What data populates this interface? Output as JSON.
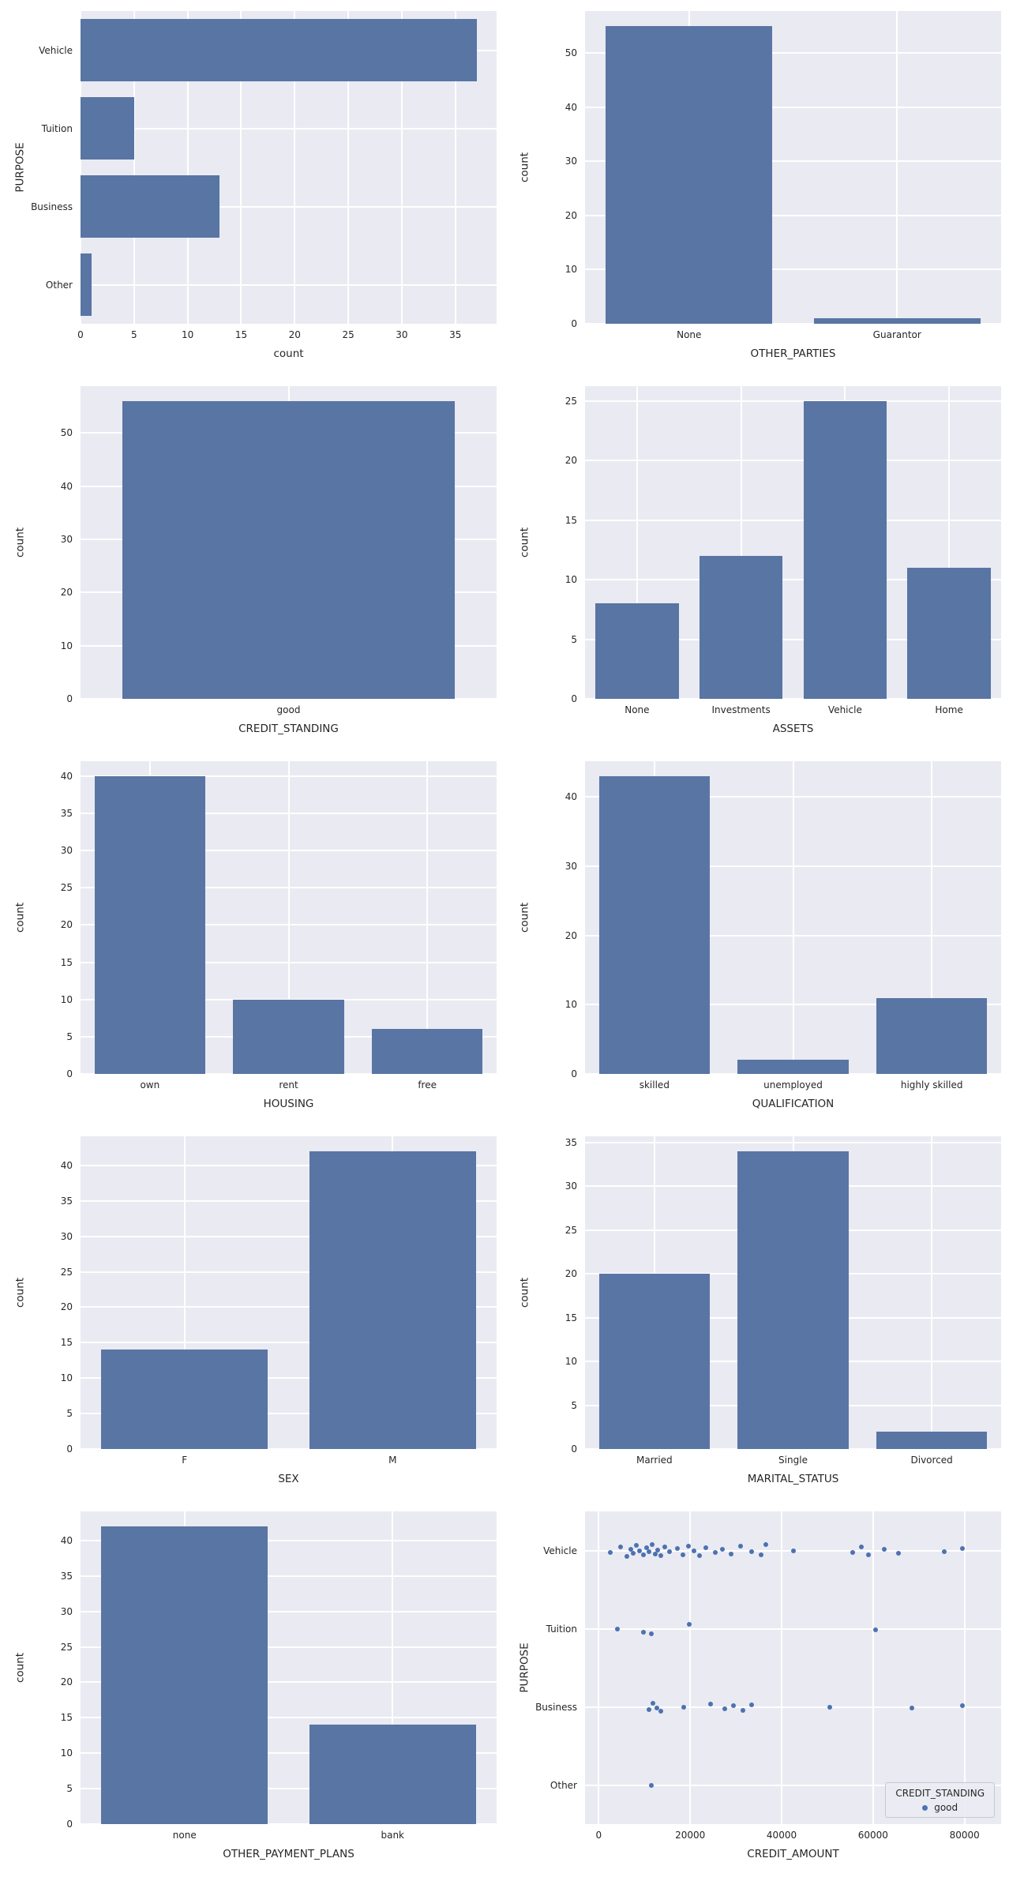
{
  "figure": {
    "background": "#ffffff",
    "axes_background": "#eaeaf2",
    "grid_color": "#ffffff",
    "bar_color": "#5875a4",
    "dot_color": "#4c72b0",
    "text_color": "#262626"
  },
  "chart_data": [
    {
      "id": "purpose",
      "type": "bar",
      "orientation": "horizontal",
      "categories": [
        "Vehicle",
        "Tuition",
        "Business",
        "Other"
      ],
      "values": [
        37,
        5,
        13,
        1
      ],
      "xlabel": "count",
      "ylabel": "PURPOSE",
      "xticks": [
        0,
        5,
        10,
        15,
        20,
        25,
        30,
        35
      ],
      "xlim": [
        0,
        38.85
      ],
      "grid": true
    },
    {
      "id": "other-parties",
      "type": "bar",
      "orientation": "vertical",
      "categories": [
        "None",
        "Guarantor"
      ],
      "values": [
        55,
        1
      ],
      "xlabel": "OTHER_PARTIES",
      "ylabel": "count",
      "yticks": [
        0,
        10,
        20,
        30,
        40,
        50
      ],
      "ylim": [
        0,
        57.75
      ],
      "grid": true
    },
    {
      "id": "credit-standing",
      "type": "bar",
      "orientation": "vertical",
      "categories": [
        "good"
      ],
      "values": [
        56
      ],
      "xlabel": "CREDIT_STANDING",
      "ylabel": "count",
      "yticks": [
        0,
        10,
        20,
        30,
        40,
        50
      ],
      "ylim": [
        0,
        58.8
      ],
      "grid": true
    },
    {
      "id": "assets",
      "type": "bar",
      "orientation": "vertical",
      "categories": [
        "None",
        "Investments",
        "Vehicle",
        "Home"
      ],
      "values": [
        8,
        12,
        25,
        11
      ],
      "xlabel": "ASSETS",
      "ylabel": "count",
      "yticks": [
        0,
        5,
        10,
        15,
        20,
        25
      ],
      "ylim": [
        0,
        26.25
      ],
      "grid": true
    },
    {
      "id": "housing",
      "type": "bar",
      "orientation": "vertical",
      "categories": [
        "own",
        "rent",
        "free"
      ],
      "values": [
        40,
        10,
        6
      ],
      "xlabel": "HOUSING",
      "ylabel": "count",
      "yticks": [
        0,
        5,
        10,
        15,
        20,
        25,
        30,
        35,
        40
      ],
      "ylim": [
        0,
        42
      ],
      "grid": true
    },
    {
      "id": "qualification",
      "type": "bar",
      "orientation": "vertical",
      "categories": [
        "skilled",
        "unemployed",
        "highly skilled"
      ],
      "values": [
        43,
        2,
        11
      ],
      "xlabel": "QUALIFICATION",
      "ylabel": "count",
      "yticks": [
        0,
        10,
        20,
        30,
        40
      ],
      "ylim": [
        0,
        45.15
      ],
      "grid": true
    },
    {
      "id": "sex",
      "type": "bar",
      "orientation": "vertical",
      "categories": [
        "F",
        "M"
      ],
      "values": [
        14,
        42
      ],
      "xlabel": "SEX",
      "ylabel": "count",
      "yticks": [
        0,
        5,
        10,
        15,
        20,
        25,
        30,
        35,
        40
      ],
      "ylim": [
        0,
        44.1
      ],
      "grid": true
    },
    {
      "id": "marital-status",
      "type": "bar",
      "orientation": "vertical",
      "categories": [
        "Married",
        "Single",
        "Divorced"
      ],
      "values": [
        20,
        34,
        2
      ],
      "xlabel": "MARITAL_STATUS",
      "ylabel": "count",
      "yticks": [
        0,
        5,
        10,
        15,
        20,
        25,
        30,
        35
      ],
      "ylim": [
        0,
        35.7
      ],
      "grid": true
    },
    {
      "id": "other-payment-plans",
      "type": "bar",
      "orientation": "vertical",
      "categories": [
        "none",
        "bank"
      ],
      "values": [
        42,
        14
      ],
      "xlabel": "OTHER_PAYMENT_PLANS",
      "ylabel": "count",
      "yticks": [
        0,
        5,
        10,
        15,
        20,
        25,
        30,
        35,
        40
      ],
      "ylim": [
        0,
        44.1
      ],
      "grid": true
    },
    {
      "id": "credit-amount-by-purpose",
      "type": "scatter",
      "categories": [
        "Vehicle",
        "Tuition",
        "Business",
        "Other"
      ],
      "xlabel": "CREDIT_AMOUNT",
      "ylabel": "PURPOSE",
      "xticks": [
        0,
        20000,
        40000,
        60000,
        80000
      ],
      "xlim": [
        -3000,
        88000
      ],
      "grid": true,
      "legend": {
        "title": "CREDIT_STANDING",
        "items": [
          {
            "label": "good"
          }
        ]
      },
      "points": [
        [
          0,
          2500,
          0.03
        ],
        [
          0,
          4800,
          -0.05
        ],
        [
          0,
          6200,
          0.08
        ],
        [
          0,
          7000,
          -0.02
        ],
        [
          0,
          7600,
          0.04
        ],
        [
          0,
          8300,
          -0.07
        ],
        [
          0,
          9000,
          0.01
        ],
        [
          0,
          9700,
          0.06
        ],
        [
          0,
          10400,
          -0.04
        ],
        [
          0,
          11000,
          0.02
        ],
        [
          0,
          11700,
          -0.08
        ],
        [
          0,
          12300,
          0.05
        ],
        [
          0,
          12900,
          -0.01
        ],
        [
          0,
          13600,
          0.07
        ],
        [
          0,
          14400,
          -0.05
        ],
        [
          0,
          15500,
          0.02
        ],
        [
          0,
          17200,
          -0.03
        ],
        [
          0,
          18400,
          0.06
        ],
        [
          0,
          19600,
          -0.06
        ],
        [
          0,
          20800,
          0.01
        ],
        [
          0,
          22000,
          0.07
        ],
        [
          0,
          23500,
          -0.04
        ],
        [
          0,
          25500,
          0.03
        ],
        [
          0,
          27000,
          -0.02
        ],
        [
          0,
          29000,
          0.05
        ],
        [
          0,
          31000,
          -0.06
        ],
        [
          0,
          33500,
          0.02
        ],
        [
          0,
          35500,
          0.06
        ],
        [
          0,
          36500,
          -0.08
        ],
        [
          0,
          42500,
          0.0
        ],
        [
          0,
          55500,
          0.03
        ],
        [
          0,
          57500,
          -0.05
        ],
        [
          0,
          59000,
          0.06
        ],
        [
          0,
          62500,
          -0.02
        ],
        [
          0,
          65500,
          0.04
        ],
        [
          0,
          75500,
          0.02
        ],
        [
          0,
          79500,
          -0.03
        ],
        [
          1,
          4000,
          0.0
        ],
        [
          1,
          9800,
          0.05
        ],
        [
          1,
          11500,
          0.07
        ],
        [
          1,
          19800,
          -0.06
        ],
        [
          1,
          60500,
          0.02
        ],
        [
          2,
          11000,
          0.04
        ],
        [
          2,
          11900,
          -0.05
        ],
        [
          2,
          12700,
          0.02
        ],
        [
          2,
          13500,
          0.06
        ],
        [
          2,
          18500,
          0.0
        ],
        [
          2,
          24500,
          -0.04
        ],
        [
          2,
          27500,
          0.03
        ],
        [
          2,
          29500,
          -0.02
        ],
        [
          2,
          31500,
          0.05
        ],
        [
          2,
          33500,
          -0.03
        ],
        [
          2,
          50500,
          0.0
        ],
        [
          2,
          68500,
          0.02
        ],
        [
          2,
          79500,
          -0.02
        ],
        [
          3,
          11500,
          0.0
        ]
      ]
    }
  ]
}
